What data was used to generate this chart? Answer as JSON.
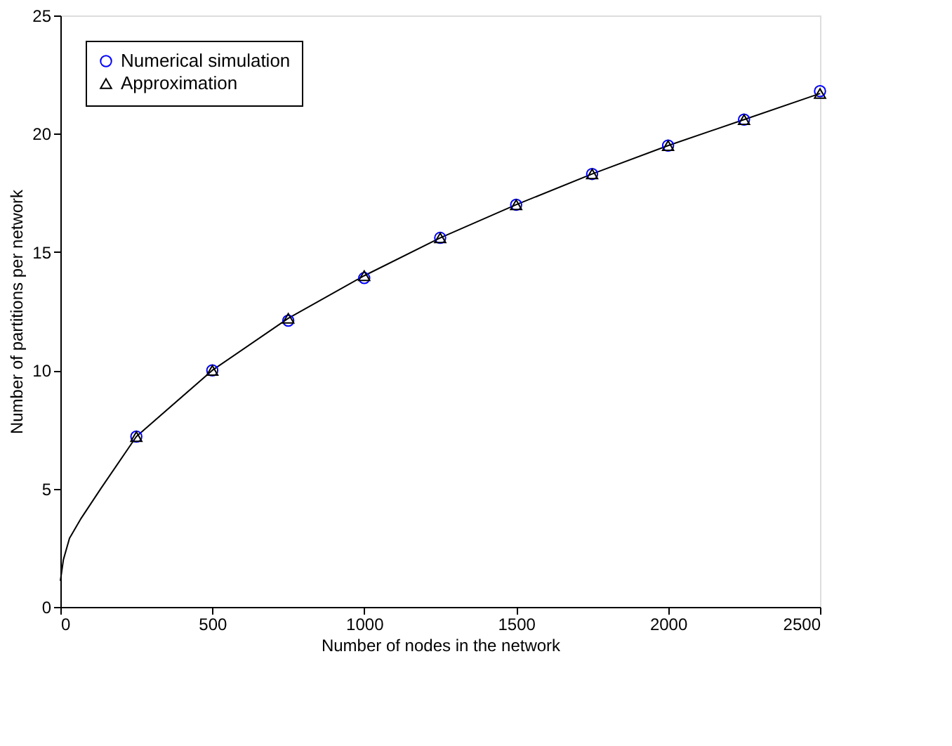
{
  "chart_data": {
    "type": "scatter",
    "xlabel": "Number of nodes in the network",
    "ylabel": "Number of partitions per network",
    "x": [
      250,
      500,
      750,
      1000,
      1250,
      1500,
      1750,
      2000,
      2250,
      2500
    ],
    "series": [
      {
        "name": "Numerical simulation",
        "color": "#0000ff",
        "marker": "circle",
        "values": [
          7.2,
          10.0,
          12.1,
          13.9,
          15.6,
          17.0,
          18.3,
          19.5,
          20.6,
          21.8
        ]
      },
      {
        "name": "Approximation",
        "color": "#000000",
        "marker": "triangle",
        "values": [
          7.2,
          10.0,
          12.2,
          14.0,
          15.6,
          17.0,
          18.3,
          19.5,
          20.6,
          21.7
        ]
      },
      {
        "type": "line",
        "color": "#000000",
        "line_style": "solid",
        "x": [
          0,
          10,
          30,
          66,
          133,
          250,
          500,
          750,
          1000,
          1250,
          1500,
          1750,
          2000,
          2250,
          2500
        ],
        "values": [
          1.1,
          2.0,
          2.9,
          3.7,
          5.0,
          7.2,
          10.0,
          12.2,
          14.0,
          15.6,
          17.0,
          18.3,
          19.5,
          20.6,
          21.7
        ]
      }
    ],
    "xlim": [
      0,
      2500
    ],
    "xticks": [
      0,
      500,
      1000,
      1500,
      2000,
      2500
    ],
    "ylim": [
      0,
      25
    ],
    "yticks": [
      0,
      5,
      10,
      15,
      20,
      25
    ],
    "grid": false,
    "legend": "top left"
  }
}
